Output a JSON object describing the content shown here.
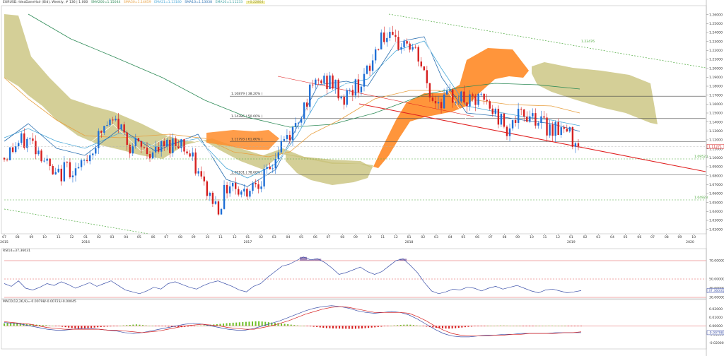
{
  "headers": {
    "main": "EURUSD.-IdeaDaneHair (Bid), Weekly, # 136 | 1.000",
    "main_indicators": [
      {
        "label": "SMA200=1.15044",
        "color": "#2e8b57"
      },
      {
        "label": "SMA50=1.14659",
        "color": "#e8a040"
      },
      {
        "label": "EMA21=1.13180",
        "color": "#4aa8d8"
      },
      {
        "label": "SMA10=1.13038",
        "color": "#2a6fb0"
      },
      {
        "label": "EMA10=1.11233",
        "color": "#3aa0a0"
      }
    ],
    "main_extra": "+0.22864",
    "rsi": "RSI14=37.36031",
    "macd": "MACD(12,26,9)=-0.00798/-0.00723/-0.00045"
  },
  "colors": {
    "up_candle": "#1f6fd6",
    "down_candle": "#d62020",
    "cloud_bull": "#c8c27a",
    "cloud_bear": "#ff8c2a",
    "trendline": "#e02020",
    "channel": "#4aa83a",
    "rsi_line": "#3a4fa8",
    "rsi_overbought_fill": "#8c6aa8",
    "macd_up": "#6fbf2a",
    "macd_down": "#d62020"
  },
  "chart_data": [
    {
      "type": "candlestick",
      "title": "",
      "x": [
        "2015-07",
        "2015-08",
        "2015-09",
        "2015-10",
        "2015-11",
        "2015-12",
        "2016-01",
        "2016-02",
        "2016-03",
        "2016-04",
        "2016-05",
        "2016-06",
        "2016-07",
        "2016-08",
        "2016-09",
        "2016-10",
        "2016-11",
        "2016-12",
        "2017-01",
        "2017-02",
        "2017-03",
        "2017-04",
        "2017-05",
        "2017-06",
        "2017-07",
        "2017-08",
        "2017-09",
        "2017-10",
        "2017-11",
        "2017-12",
        "2018-01",
        "2018-02",
        "2018-03",
        "2018-04",
        "2018-05",
        "2018-06",
        "2018-07",
        "2018-08",
        "2018-09",
        "2018-10",
        "2018-11",
        "2018-12",
        "2019-01",
        "2019-02",
        "2019-03",
        "2019-04"
      ],
      "close": [
        1.1,
        1.115,
        1.12,
        1.105,
        1.075,
        1.09,
        1.085,
        1.11,
        1.135,
        1.14,
        1.115,
        1.11,
        1.105,
        1.115,
        1.12,
        1.095,
        1.065,
        1.045,
        1.075,
        1.06,
        1.075,
        1.08,
        1.115,
        1.13,
        1.165,
        1.185,
        1.185,
        1.165,
        1.18,
        1.195,
        1.24,
        1.225,
        1.23,
        1.21,
        1.165,
        1.165,
        1.17,
        1.16,
        1.165,
        1.15,
        1.135,
        1.145,
        1.15,
        1.135,
        1.135,
        1.125
      ],
      "axis": {
        "ylim": [
          1.015,
          1.27
        ],
        "yticks": [
          "1.26000",
          "1.25000",
          "1.24000",
          "1.23000",
          "1.22000",
          "1.21000",
          "1.20000",
          "1.19000",
          "1.18000",
          "1.17000",
          "1.16000",
          "1.15000",
          "1.14000",
          "1.13000",
          "1.12000",
          "1.11000",
          "1.10000",
          "1.09000",
          "1.08000",
          "1.07000",
          "1.06000",
          "1.05000",
          "1.04000",
          "1.03000",
          "1.02000"
        ],
        "ytick_values": [
          1.26,
          1.25,
          1.24,
          1.23,
          1.22,
          1.21,
          1.2,
          1.19,
          1.18,
          1.17,
          1.16,
          1.15,
          1.14,
          1.13,
          1.12,
          1.11,
          1.1,
          1.09,
          1.08,
          1.07,
          1.06,
          1.05,
          1.04,
          1.03,
          1.02
        ]
      },
      "x_axis_labels": [
        {
          "label": "07",
          "t": 0.0
        },
        {
          "label": "08",
          "t": 0.0188
        },
        {
          "label": "09",
          "t": 0.0387
        },
        {
          "label": "10",
          "t": 0.0575
        },
        {
          "label": "11",
          "t": 0.0774
        },
        {
          "label": "12",
          "t": 0.0962
        },
        {
          "label": "01",
          "t": 0.1161
        },
        {
          "label": "02",
          "t": 0.1349
        },
        {
          "label": "03",
          "t": 0.1537
        },
        {
          "label": "04",
          "t": 0.1736
        },
        {
          "label": "05",
          "t": 0.1924
        },
        {
          "label": "06",
          "t": 0.2123
        },
        {
          "label": "07",
          "t": 0.2311
        },
        {
          "label": "08",
          "t": 0.251
        },
        {
          "label": "09",
          "t": 0.2698
        },
        {
          "label": "10",
          "t": 0.2897
        },
        {
          "label": "11",
          "t": 0.3085
        },
        {
          "label": "12",
          "t": 0.3284
        },
        {
          "label": "01",
          "t": 0.3472
        },
        {
          "label": "02",
          "t": 0.366
        },
        {
          "label": "03",
          "t": 0.3848
        },
        {
          "label": "04",
          "t": 0.4047
        },
        {
          "label": "05",
          "t": 0.4235
        },
        {
          "label": "06",
          "t": 0.4434
        },
        {
          "label": "07",
          "t": 0.4622
        },
        {
          "label": "08",
          "t": 0.4821
        },
        {
          "label": "09",
          "t": 0.5009
        },
        {
          "label": "10",
          "t": 0.5208
        },
        {
          "label": "11",
          "t": 0.5396
        },
        {
          "label": "12",
          "t": 0.5584
        },
        {
          "label": "01",
          "t": 0.5772
        },
        {
          "label": "02",
          "t": 0.5971
        },
        {
          "label": "03",
          "t": 0.6159
        },
        {
          "label": "04",
          "t": 0.6358
        },
        {
          "label": "05",
          "t": 0.6546
        },
        {
          "label": "06",
          "t": 0.6745
        },
        {
          "label": "07",
          "t": 0.6933
        },
        {
          "label": "08",
          "t": 0.7132
        },
        {
          "label": "09",
          "t": 0.732
        },
        {
          "label": "10",
          "t": 0.7519
        },
        {
          "label": "11",
          "t": 0.7707
        },
        {
          "label": "12",
          "t": 0.7895
        },
        {
          "label": "01",
          "t": 0.8083
        },
        {
          "label": "02",
          "t": 0.8282
        },
        {
          "label": "03",
          "t": 0.847
        },
        {
          "label": "04",
          "t": 0.8669
        },
        {
          "label": "05",
          "t": 0.8857
        },
        {
          "label": "06",
          "t": 0.9056
        },
        {
          "label": "07",
          "t": 0.9244
        },
        {
          "label": "08",
          "t": 0.9443
        },
        {
          "label": "09",
          "t": 0.9631
        },
        {
          "label": "10",
          "t": 0.983
        },
        {
          "label": "01",
          "t": 1.0018
        },
        {
          "label": "02",
          "t": 1.0206
        }
      ],
      "year_labels": [
        {
          "label": "2015",
          "t": 0.0
        },
        {
          "label": "2016",
          "t": 0.1161
        },
        {
          "label": "2017",
          "t": 0.3472
        },
        {
          "label": "2018",
          "t": 0.5772
        },
        {
          "label": "2019",
          "t": 0.8083
        },
        {
          "label": "2020",
          "t": 1.0411
        }
      ],
      "fibonacci": [
        {
          "label": "1.16879 ( 38.20% )",
          "value": 1.16879
        },
        {
          "label": "1.14386 ( 50.00% )",
          "value": 1.14386
        },
        {
          "label": "1.11793 ( 61.80% )",
          "value": 1.11793
        },
        {
          "label": "1.08101 ( 78.60% )",
          "value": 1.08101
        }
      ],
      "channel_labels": [
        {
          "label": "1.23476",
          "value": 1.23476
        },
        {
          "label": "1.09520",
          "value": 1.0952
        },
        {
          "label": "1.04923",
          "value": 1.04923
        }
      ],
      "current_price": {
        "label": "1.11271",
        "value": 1.11271
      },
      "indicators": [
        "SMA200",
        "SMA50",
        "EMA21",
        "SMA10",
        "EMA10",
        "Ichimoku cloud"
      ]
    },
    {
      "type": "line",
      "name": "RSI",
      "ylim": [
        30,
        80
      ],
      "yticks": [
        "70.00000",
        "50.00000",
        "40.00000",
        "30.00000"
      ],
      "ytick_values": [
        70,
        50,
        40,
        30
      ],
      "levels": [
        70,
        50,
        30
      ],
      "current": {
        "label": "37.36031",
        "value": 37.36031
      },
      "values": [
        45,
        42,
        48,
        40,
        38,
        41,
        45,
        43,
        47,
        44,
        40,
        43,
        46,
        42,
        45,
        48,
        43,
        38,
        36,
        34,
        37,
        41,
        39,
        45,
        47,
        44,
        41,
        39,
        43,
        46,
        48,
        45,
        42,
        38,
        36,
        42,
        45,
        52,
        58,
        64,
        66,
        70,
        74,
        71,
        72,
        68,
        62,
        55,
        57,
        60,
        63,
        58,
        55,
        58,
        64,
        70,
        72,
        65,
        57,
        46,
        37,
        34,
        36,
        39,
        38,
        41,
        40,
        37,
        40,
        42,
        39,
        41,
        43,
        40,
        37,
        35,
        38,
        39,
        37,
        35,
        36,
        37.4
      ]
    },
    {
      "type": "bar",
      "name": "MACD",
      "ylim": [
        -0.024,
        0.028
      ],
      "yticks": [
        "0.02000",
        "0.01000",
        "0.00000",
        "-0.01000",
        "-0.02000"
      ],
      "ytick_values": [
        0.02,
        0.01,
        0.0,
        -0.01,
        -0.02
      ],
      "current": {
        "label": "-0.00798",
        "value": -0.00798
      },
      "histogram": [
        0.003,
        0.0032,
        0.0034,
        0.0036,
        0.0033,
        0.003,
        0.0027,
        0.0024,
        0.0021,
        0.0018,
        0.0015,
        0.0012,
        0.001,
        0.0008,
        0.0005,
        0.0003,
        -0.0002,
        -0.0005,
        -0.001,
        -0.0015,
        -0.002,
        -0.0026,
        -0.003,
        -0.0032,
        -0.0034,
        -0.0031,
        -0.0028,
        -0.0024,
        -0.002,
        -0.0016,
        -0.0013,
        -0.001,
        -0.0008,
        -0.0006,
        -0.0004,
        -0.0002,
        0.0003,
        0.0006,
        0.0009,
        0.0012,
        0.0015,
        0.0018,
        0.0014,
        0.001,
        0.0006,
        0.0003,
        0.0001,
        -0.0001,
        -0.0002,
        -0.0004,
        -0.0006,
        -0.0008,
        -0.001,
        -0.0012,
        -0.0014,
        -0.0015,
        -0.0012,
        -0.0008,
        -0.0005,
        -0.0002,
        0.0002,
        0.0005,
        0.0008,
        0.0011,
        0.0014,
        0.0017,
        0.002,
        0.0024,
        0.0028,
        0.0032,
        0.0035,
        0.0038,
        0.004,
        0.0043,
        0.0046,
        0.0048,
        0.005,
        0.0052,
        0.0054,
        0.0055,
        0.0052,
        0.0048,
        0.0044,
        0.004,
        0.0036,
        0.0032,
        0.0028,
        0.0024,
        0.002,
        0.0015,
        0.001,
        0.0006,
        0.0003,
        0.0001,
        -0.0003,
        -0.0006,
        -0.001,
        -0.0014,
        -0.0018,
        -0.0022,
        -0.0026,
        -0.0028,
        -0.003,
        -0.0031,
        -0.0032,
        -0.0033,
        -0.0034,
        -0.0035,
        -0.0035,
        -0.0034,
        -0.0032,
        -0.003,
        -0.0027,
        -0.0024,
        -0.002,
        -0.0017,
        -0.0013,
        -0.0009,
        -0.0005,
        -0.0002,
        0.0002,
        0.0006,
        0.0009,
        0.0012,
        0.0014,
        0.0015,
        0.0014,
        0.001,
        0.0006,
        0.0002,
        -0.0003,
        -0.0008,
        -0.0013,
        -0.0018,
        -0.0023,
        -0.0026,
        -0.0029,
        -0.0031,
        -0.0032,
        -0.003,
        -0.0027,
        -0.0023,
        -0.0019,
        -0.0015,
        -0.0011,
        -0.0008,
        -0.0005,
        -0.0003,
        -0.0002,
        -0.0001,
        0.0,
        0.0002,
        0.0003,
        0.0004,
        0.0005,
        0.0005,
        0.0004,
        0.0003,
        0.0002,
        0.0001,
        0.0,
        -0.0001,
        -0.0001,
        -0.0002,
        -0.0001,
        0.0,
        0.0001,
        0.0002,
        0.0003,
        0.0004,
        0.0004,
        0.0003,
        0.0002,
        0.0001,
        0.0,
        -0.0001,
        -0.0002,
        -0.0003,
        -0.0004,
        -0.0005
      ],
      "macd_line": [
        0.004,
        0.003,
        0.002,
        0.0,
        -0.002,
        -0.004,
        -0.005,
        -0.005,
        -0.004,
        -0.003,
        -0.003,
        -0.004,
        -0.005,
        -0.006,
        -0.008,
        -0.009,
        -0.008,
        -0.006,
        -0.004,
        -0.002,
        0.0,
        0.002,
        0.003,
        0.002,
        0.0,
        -0.002,
        -0.004,
        -0.005,
        -0.005,
        -0.003,
        0.0,
        0.003,
        0.006,
        0.01,
        0.014,
        0.018,
        0.021,
        0.023,
        0.024,
        0.023,
        0.021,
        0.018,
        0.016,
        0.015,
        0.016,
        0.017,
        0.016,
        0.013,
        0.008,
        0.002,
        -0.004,
        -0.009,
        -0.012,
        -0.013,
        -0.013,
        -0.012,
        -0.011,
        -0.011,
        -0.01,
        -0.01,
        -0.009,
        -0.009,
        -0.009,
        -0.009,
        -0.008,
        -0.008,
        -0.008,
        -0.008
      ],
      "signal_line": [
        0.005,
        0.004,
        0.003,
        0.002,
        0.0,
        -0.002,
        -0.003,
        -0.004,
        -0.004,
        -0.004,
        -0.004,
        -0.004,
        -0.005,
        -0.005,
        -0.006,
        -0.007,
        -0.008,
        -0.007,
        -0.006,
        -0.004,
        -0.002,
        0.0,
        0.001,
        0.002,
        0.001,
        0.0,
        -0.002,
        -0.003,
        -0.004,
        -0.004,
        -0.002,
        0.0,
        0.003,
        0.006,
        0.01,
        0.014,
        0.017,
        0.02,
        0.022,
        0.023,
        0.022,
        0.02,
        0.018,
        0.016,
        0.016,
        0.016,
        0.016,
        0.015,
        0.011,
        0.006,
        0.0,
        -0.005,
        -0.009,
        -0.011,
        -0.012,
        -0.012,
        -0.012,
        -0.011,
        -0.011,
        -0.01,
        -0.01,
        -0.009,
        -0.009,
        -0.009,
        -0.009,
        -0.008,
        -0.008,
        -0.007
      ]
    }
  ]
}
